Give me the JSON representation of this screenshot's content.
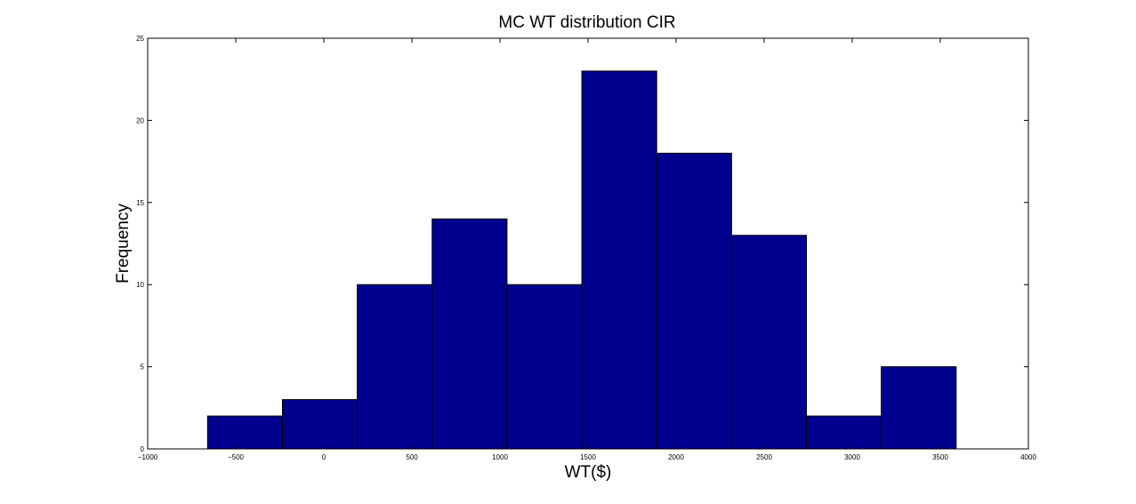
{
  "chart_data": {
    "type": "bar",
    "title": "MC WT distribution CIR",
    "xlabel": "WT($)",
    "ylabel": "Frequency",
    "xlim": [
      -1000,
      4000
    ],
    "ylim": [
      0,
      25
    ],
    "xticks": [
      -1000,
      -500,
      0,
      500,
      1000,
      1500,
      2000,
      2500,
      3000,
      3500,
      4000
    ],
    "xtick_labels": [
      "−1000",
      "−500",
      "0",
      "500",
      "1000",
      "1500",
      "2000",
      "2500",
      "3000",
      "3500",
      "4000"
    ],
    "yticks": [
      0,
      5,
      10,
      15,
      20,
      25
    ],
    "ytick_labels": [
      "0",
      "5",
      "10",
      "15",
      "20",
      "25"
    ],
    "bin_edges": [
      -660,
      -235,
      190,
      615,
      1040,
      1465,
      1890,
      2315,
      2740,
      3165,
      3590
    ],
    "values": [
      2,
      3,
      10,
      14,
      10,
      23,
      18,
      13,
      2,
      5
    ],
    "bar_color": "#00008f",
    "edge_color": "#000000",
    "grid": false
  }
}
